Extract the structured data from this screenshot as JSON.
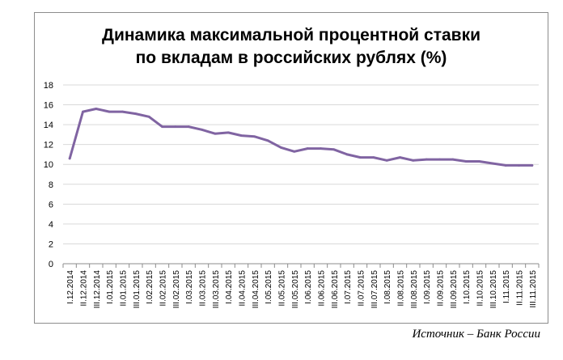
{
  "chart_data": {
    "type": "line",
    "title_lines": [
      "Динамика максимальной процентной ставки",
      "по вкладам в российских рублях (%)"
    ],
    "xlabel": "",
    "ylabel": "",
    "ylim": [
      0,
      18
    ],
    "yticks": [
      0,
      2,
      4,
      6,
      8,
      10,
      12,
      14,
      16,
      18
    ],
    "grid": true,
    "legend": "none",
    "categories": [
      "I.12.2014",
      "II.12.2014",
      "III.12.2014",
      "I.01.2015",
      "II.01.2015",
      "III.01.2015",
      "I.02.2015",
      "II.02.2015",
      "III.02.2015",
      "I.03.2015",
      "II.03.2015",
      "III.03.2015",
      "I.04.2015",
      "II.04.2015",
      "III.04.2015",
      "I.05.2015",
      "II.05.2015",
      "III.05.2015",
      "I.06.2015",
      "II.06.2015",
      "III.06.2015",
      "I.07.2015",
      "II.07.2015",
      "III.07.2015",
      "I.08.2015",
      "II.08.2015",
      "III.08.2015",
      "I.09.2015",
      "II.09.2015",
      "III.09.2015",
      "I.10.2015",
      "II.10.2015",
      "III.10.2015",
      "I.11.2015",
      "II.11.2015",
      "III.11.2015"
    ],
    "series": [
      {
        "color": "#8064a2",
        "values": [
          10.6,
          15.3,
          15.6,
          15.3,
          15.3,
          15.1,
          14.8,
          13.8,
          13.8,
          13.8,
          13.5,
          13.1,
          13.2,
          12.9,
          12.8,
          12.4,
          11.7,
          11.3,
          11.6,
          11.6,
          11.5,
          11.0,
          10.7,
          10.7,
          10.4,
          10.7,
          10.4,
          10.5,
          10.5,
          10.5,
          10.3,
          10.3,
          10.1,
          9.9,
          9.9,
          9.9
        ]
      }
    ]
  },
  "source_note": "Источник – Банк России",
  "colors": {
    "line": "#8064a2",
    "grid": "#d9d9d9",
    "axis": "#8c8c8c",
    "frame": "#8c8c8c"
  }
}
